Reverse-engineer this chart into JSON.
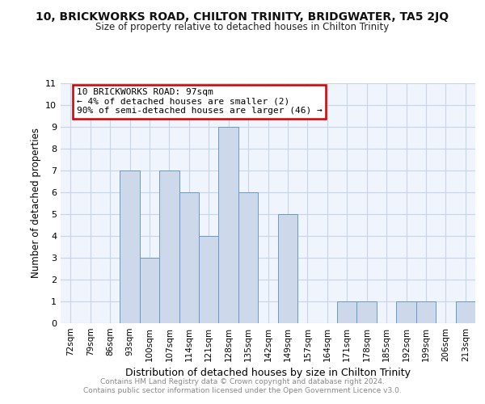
{
  "title1": "10, BRICKWORKS ROAD, CHILTON TRINITY, BRIDGWATER, TA5 2JQ",
  "title2": "Size of property relative to detached houses in Chilton Trinity",
  "xlabel": "Distribution of detached houses by size in Chilton Trinity",
  "ylabel": "Number of detached properties",
  "bar_labels": [
    "72sqm",
    "79sqm",
    "86sqm",
    "93sqm",
    "100sqm",
    "107sqm",
    "114sqm",
    "121sqm",
    "128sqm",
    "135sqm",
    "142sqm",
    "149sqm",
    "157sqm",
    "164sqm",
    "171sqm",
    "178sqm",
    "185sqm",
    "192sqm",
    "199sqm",
    "206sqm",
    "213sqm"
  ],
  "bar_values": [
    0,
    0,
    0,
    7,
    3,
    7,
    6,
    4,
    9,
    6,
    0,
    5,
    0,
    0,
    1,
    1,
    0,
    1,
    1,
    0,
    1
  ],
  "bar_color": "#cdd9ea",
  "bar_edge_color": "#6699cc",
  "annotation_text": "10 BRICKWORKS ROAD: 97sqm\n← 4% of detached houses are smaller (2)\n90% of semi-detached houses are larger (46) →",
  "annotation_box_color": "#ffffff",
  "annotation_box_edge": "#cc0000",
  "ylim": [
    0,
    11
  ],
  "yticks": [
    0,
    1,
    2,
    3,
    4,
    5,
    6,
    7,
    8,
    9,
    10,
    11
  ],
  "grid_color": "#c8d4e8",
  "footer_text": "Contains HM Land Registry data © Crown copyright and database right 2024.\nContains public sector information licensed under the Open Government Licence v3.0.",
  "bg_color": "#ffffff",
  "plot_bg_color": "#f0f4fc"
}
